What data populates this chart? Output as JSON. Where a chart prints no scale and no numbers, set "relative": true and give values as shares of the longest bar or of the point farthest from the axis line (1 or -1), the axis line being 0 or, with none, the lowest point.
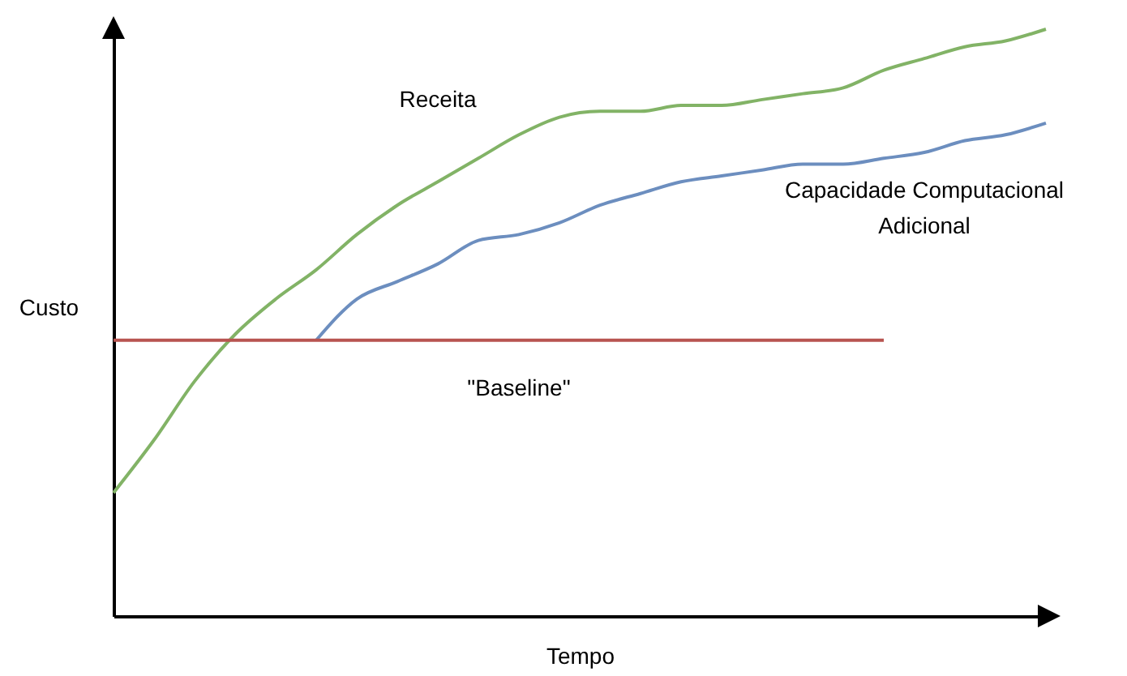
{
  "chart_data": {
    "type": "line",
    "relative": true,
    "xlabel": "Tempo",
    "ylabel": "Custo",
    "legend": false,
    "grid": false,
    "marker": "none",
    "tick_labels": false,
    "categories": [
      null,
      null,
      null,
      null,
      null,
      null,
      null,
      null,
      null,
      null,
      null,
      null,
      null,
      null,
      null,
      null,
      null,
      null,
      null,
      null,
      null,
      null,
      null,
      null
    ],
    "series": [
      {
        "name": "Receita",
        "color": "#82b366",
        "values": [
          0.21,
          0.3,
          0.4,
          0.48,
          0.54,
          0.59,
          0.65,
          0.7,
          0.74,
          0.78,
          0.82,
          0.85,
          0.86,
          0.86,
          0.87,
          0.87,
          0.88,
          0.89,
          0.9,
          0.93,
          0.95,
          0.97,
          0.98,
          1
        ]
      },
      {
        "name": "Capacidade Computacional Adicional",
        "color": "#6c8ebf",
        "values": [
          null,
          null,
          null,
          null,
          null,
          0.47,
          0.54,
          0.57,
          0.6,
          0.64,
          0.65,
          0.67,
          0.7,
          0.72,
          0.74,
          0.75,
          0.76,
          0.77,
          0.77,
          0.78,
          0.79,
          0.81,
          0.82,
          0.84
        ]
      },
      {
        "name": "\"Baseline\"",
        "color": "#b85450",
        "values": [
          0.47,
          0.47,
          0.47,
          0.47,
          0.47,
          0.47,
          0.47,
          0.47,
          0.47,
          0.47,
          0.47,
          0.47,
          0.47,
          0.47,
          0.47,
          0.47,
          0.47,
          0.47,
          0.47,
          0.47,
          null,
          null,
          null,
          null
        ]
      }
    ]
  }
}
